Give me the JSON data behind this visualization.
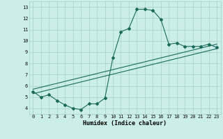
{
  "title": "",
  "xlabel": "Humidex (Indice chaleur)",
  "ylabel": "",
  "background_color": "#cceee8",
  "grid_color": "#aad4cc",
  "line_color": "#1a6b5a",
  "xlim": [
    -0.5,
    23.5
  ],
  "ylim": [
    3.5,
    13.5
  ],
  "xticks": [
    0,
    1,
    2,
    3,
    4,
    5,
    6,
    7,
    8,
    9,
    10,
    11,
    12,
    13,
    14,
    15,
    16,
    17,
    18,
    19,
    20,
    21,
    22,
    23
  ],
  "yticks": [
    4,
    5,
    6,
    7,
    8,
    9,
    10,
    11,
    12,
    13
  ],
  "main_x": [
    0,
    1,
    2,
    3,
    4,
    5,
    6,
    7,
    8,
    9,
    10,
    11,
    12,
    13,
    14,
    15,
    16,
    17,
    18,
    19,
    20,
    21,
    22,
    23
  ],
  "main_y": [
    5.5,
    5.0,
    5.2,
    4.7,
    4.3,
    4.0,
    3.9,
    4.4,
    4.4,
    4.9,
    8.5,
    10.8,
    11.1,
    12.8,
    12.8,
    12.7,
    11.9,
    9.7,
    9.8,
    9.5,
    9.5,
    9.5,
    9.7,
    9.4
  ],
  "line1_x": [
    0,
    23
  ],
  "line1_y": [
    5.3,
    9.3
  ],
  "line2_x": [
    0,
    23
  ],
  "line2_y": [
    5.7,
    9.7
  ],
  "font_family": "monospace",
  "tick_fontsize": 5.0,
  "xlabel_fontsize": 6.0
}
